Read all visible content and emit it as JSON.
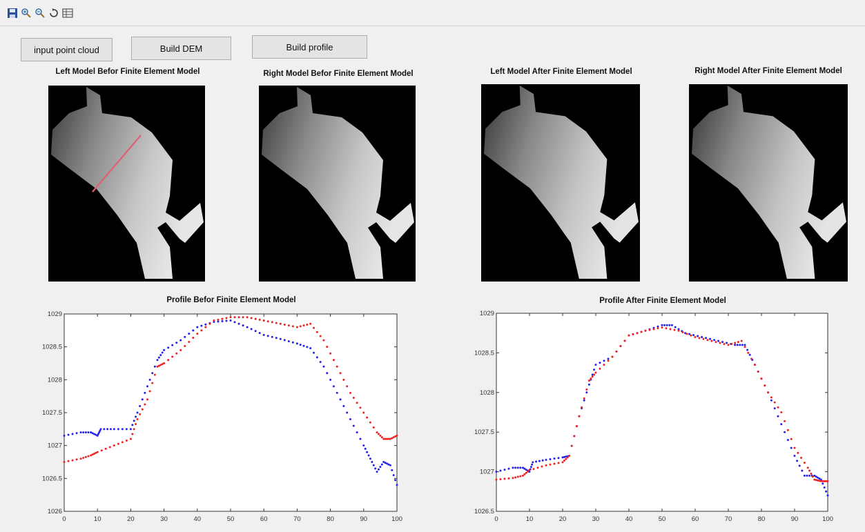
{
  "toolbar": {
    "icons": [
      "save-icon",
      "zoom-in-icon",
      "zoom-out-icon",
      "rotate-icon",
      "data-cursor-icon"
    ]
  },
  "buttons": {
    "input": "input point cloud",
    "dem": "Build DEM",
    "profile": "Build profile"
  },
  "images": {
    "left_before": "Left Model Befor Finite Element Model",
    "right_before": "Right Model Befor Finite Element Model",
    "left_after": "Left Model After Finite Element Model",
    "right_after": "Right Model After Finite Element Model"
  },
  "colors": {
    "series_a": "#2222ee",
    "series_b": "#ee2222",
    "profile_line": "#e06070"
  },
  "chart_data": [
    {
      "type": "scatter",
      "title": "Profile Befor Finite Element Model",
      "xlabel": "",
      "ylabel": "",
      "xlim": [
        0,
        100
      ],
      "ylim": [
        1026,
        1029
      ],
      "xticks": [
        0,
        10,
        20,
        30,
        40,
        50,
        60,
        70,
        80,
        90,
        100
      ],
      "yticks": [
        1026,
        1026.5,
        1027,
        1027.5,
        1028,
        1028.5,
        1029
      ],
      "ytick_labels": [
        "1026",
        "1026.5",
        "1027",
        "1027.5",
        "1028",
        "1028.5",
        "1029"
      ],
      "series": [
        {
          "color": "#2222ee",
          "x": [
            0,
            5,
            8,
            10,
            11,
            15,
            20,
            22,
            25,
            28,
            30,
            35,
            40,
            45,
            50,
            55,
            60,
            65,
            70,
            74,
            78,
            82,
            86,
            90,
            92,
            94,
            96,
            98,
            100
          ],
          "y": [
            1027.15,
            1027.2,
            1027.2,
            1027.15,
            1027.25,
            1027.25,
            1027.25,
            1027.5,
            1027.9,
            1028.3,
            1028.45,
            1028.6,
            1028.8,
            1028.88,
            1028.9,
            1028.8,
            1028.68,
            1028.62,
            1028.55,
            1028.48,
            1028.2,
            1027.8,
            1027.4,
            1027.0,
            1026.8,
            1026.6,
            1026.75,
            1026.7,
            1026.4
          ]
        },
        {
          "color": "#ee2222",
          "x": [
            0,
            5,
            8,
            10,
            15,
            20,
            22,
            25,
            28,
            30,
            35,
            40,
            45,
            50,
            55,
            60,
            65,
            70,
            74,
            78,
            82,
            86,
            90,
            94,
            96,
            98,
            100
          ],
          "y": [
            1026.75,
            1026.8,
            1026.85,
            1026.9,
            1027.0,
            1027.1,
            1027.4,
            1027.7,
            1028.2,
            1028.25,
            1028.45,
            1028.7,
            1028.9,
            1028.95,
            1028.95,
            1028.9,
            1028.85,
            1028.8,
            1028.85,
            1028.6,
            1028.2,
            1027.8,
            1027.5,
            1027.2,
            1027.1,
            1027.1,
            1027.15
          ]
        }
      ]
    },
    {
      "type": "scatter",
      "title": "Profile After Finite Element Model",
      "xlabel": "",
      "ylabel": "",
      "xlim": [
        0,
        100
      ],
      "ylim": [
        1026.5,
        1029
      ],
      "xticks": [
        0,
        10,
        20,
        30,
        40,
        50,
        60,
        70,
        80,
        90,
        100
      ],
      "yticks": [
        1026.5,
        1027,
        1027.5,
        1028,
        1028.5,
        1029
      ],
      "ytick_labels": [
        "1026.5",
        "1027",
        "1027.5",
        "1028",
        "1028.5",
        "1029"
      ],
      "series": [
        {
          "color": "#2222ee",
          "x": [
            0,
            5,
            8,
            10,
            11,
            15,
            20,
            22,
            25,
            28,
            30,
            35,
            40,
            45,
            50,
            53,
            57,
            62,
            67,
            72,
            75,
            78,
            82,
            86,
            90,
            93,
            96,
            98,
            100
          ],
          "y": [
            1027.0,
            1027.05,
            1027.05,
            1027.0,
            1027.12,
            1027.15,
            1027.18,
            1027.2,
            1027.7,
            1028.1,
            1028.35,
            1028.45,
            1028.72,
            1028.78,
            1028.85,
            1028.85,
            1028.75,
            1028.7,
            1028.65,
            1028.6,
            1028.6,
            1028.35,
            1028.0,
            1027.6,
            1027.2,
            1026.95,
            1026.95,
            1026.9,
            1026.7
          ]
        },
        {
          "color": "#ee2222",
          "x": [
            0,
            5,
            8,
            10,
            15,
            20,
            22,
            25,
            28,
            30,
            35,
            40,
            45,
            50,
            55,
            60,
            65,
            70,
            74,
            78,
            82,
            86,
            90,
            94,
            96,
            98,
            100
          ],
          "y": [
            1026.9,
            1026.92,
            1026.95,
            1027.02,
            1027.08,
            1027.12,
            1027.2,
            1027.7,
            1028.15,
            1028.25,
            1028.45,
            1028.72,
            1028.78,
            1028.82,
            1028.78,
            1028.7,
            1028.65,
            1028.6,
            1028.65,
            1028.35,
            1028.0,
            1027.75,
            1027.3,
            1027.05,
            1026.9,
            1026.88,
            1026.88
          ]
        }
      ]
    }
  ]
}
